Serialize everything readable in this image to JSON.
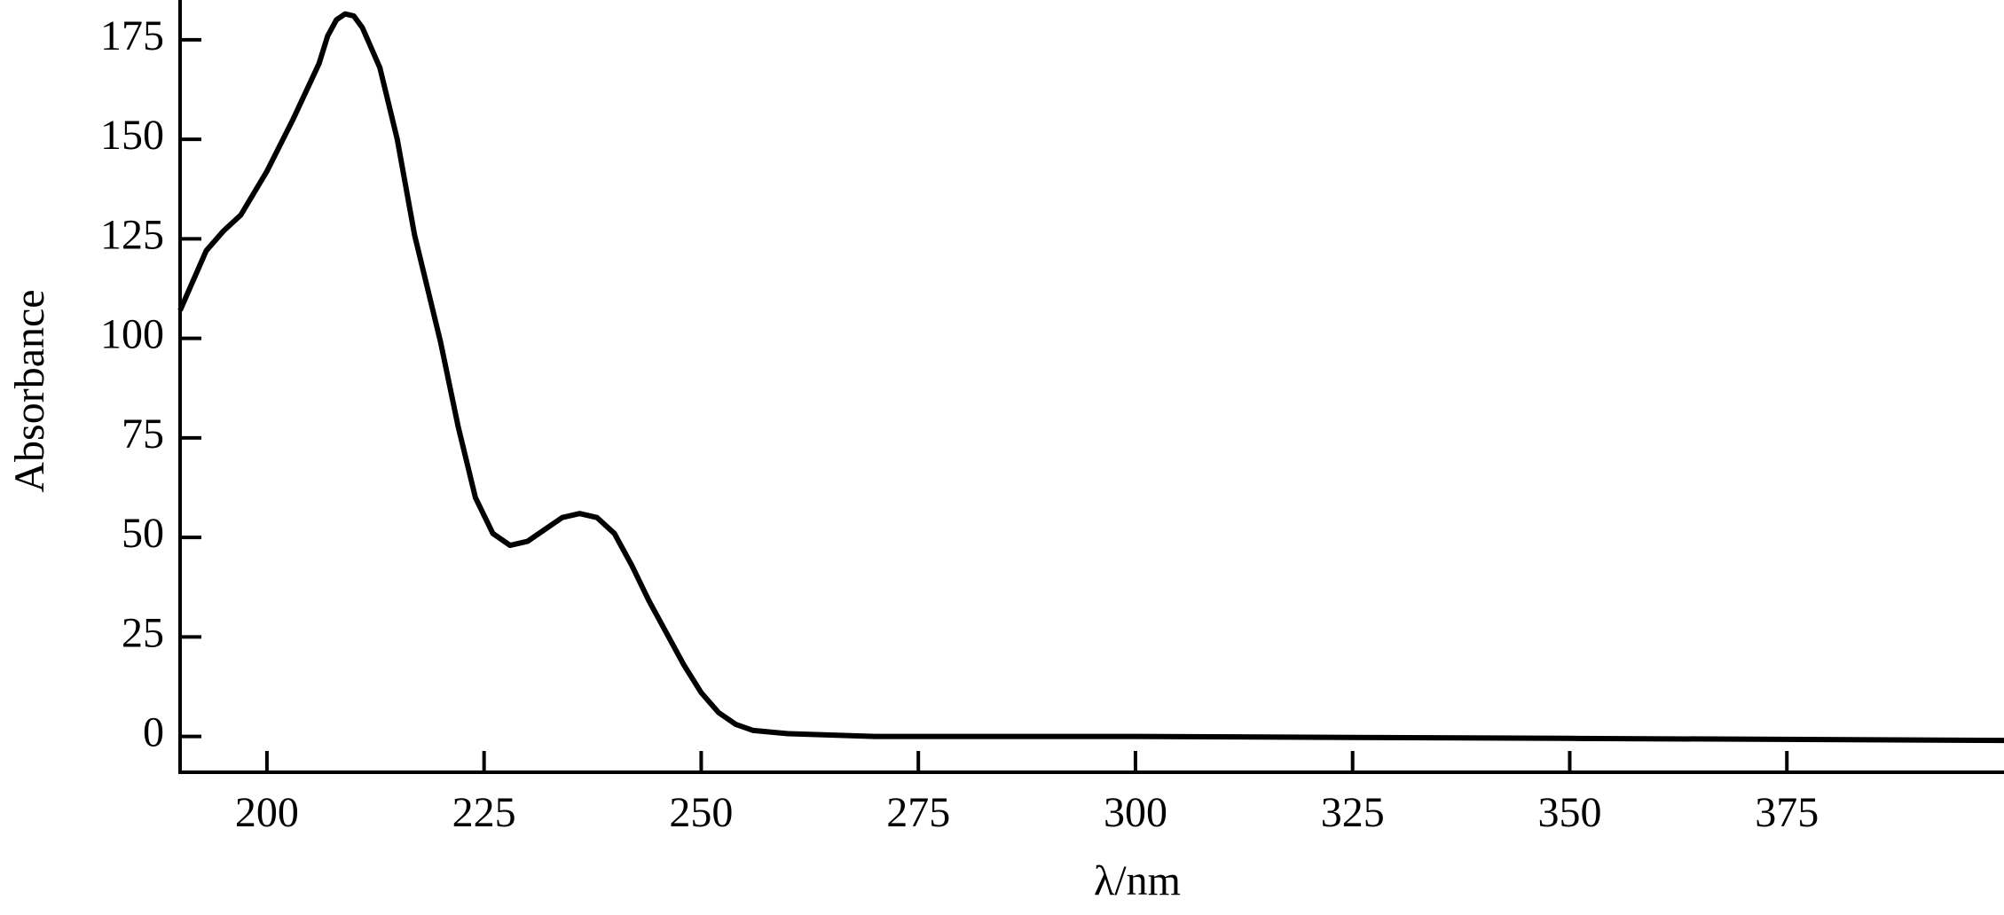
{
  "chart_data": {
    "type": "line",
    "x_label": "λ/nm",
    "y_label": "Absorbance",
    "x": [
      190,
      193,
      195,
      197,
      200,
      203,
      206,
      207,
      208,
      209,
      210,
      211,
      213,
      215,
      217,
      220,
      222,
      224,
      226,
      228,
      230,
      232,
      234,
      236,
      238,
      240,
      242,
      244,
      246,
      248,
      250,
      252,
      254,
      256,
      260,
      270,
      300,
      350,
      400
    ],
    "series": [
      {
        "name": "Absorbance",
        "color": "#000000",
        "values": [
          107,
          122,
          127,
          131,
          142,
          155,
          169,
          176,
          180,
          181.5,
          181,
          178,
          168,
          150,
          126,
          99,
          78,
          60,
          51,
          48,
          49,
          52,
          55,
          56,
          55,
          51,
          43,
          34,
          26,
          18,
          11,
          6,
          3,
          1.5,
          0.7,
          0,
          0,
          -0.5,
          -1
        ]
      }
    ],
    "xlim": [
      190,
      400
    ],
    "ylim": [
      -9,
      185
    ],
    "xticks": [
      200,
      225,
      250,
      275,
      300,
      325,
      350,
      375
    ],
    "yticks": [
      0,
      25,
      50,
      75,
      100,
      125,
      150,
      175
    ],
    "grid": false
  }
}
